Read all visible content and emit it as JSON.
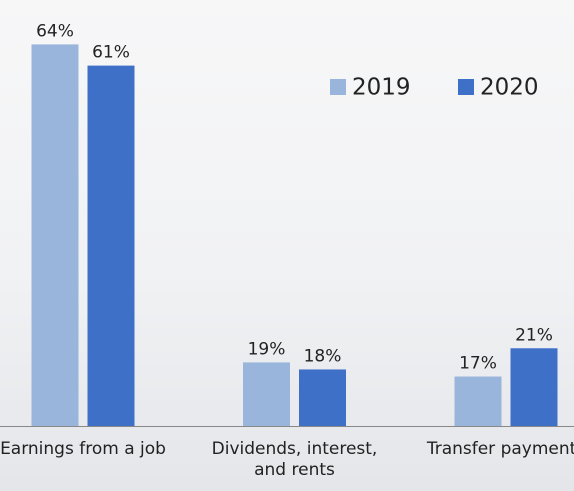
{
  "chart_data": {
    "type": "bar",
    "categories": [
      "Earnings from a job",
      "Dividends, interest, and rents",
      "Transfer payments"
    ],
    "series": [
      {
        "name": "2019",
        "color": "#9ab5dc",
        "values": [
          64,
          19,
          17
        ],
        "value_labels": [
          "64%",
          "19%",
          "17%"
        ]
      },
      {
        "name": "2020",
        "color": "#3f70c7",
        "values": [
          61,
          18,
          21
        ],
        "value_labels": [
          "61%",
          "18%",
          "21%"
        ]
      }
    ],
    "ylim": [
      10,
      70
    ],
    "legend": "top-right"
  }
}
